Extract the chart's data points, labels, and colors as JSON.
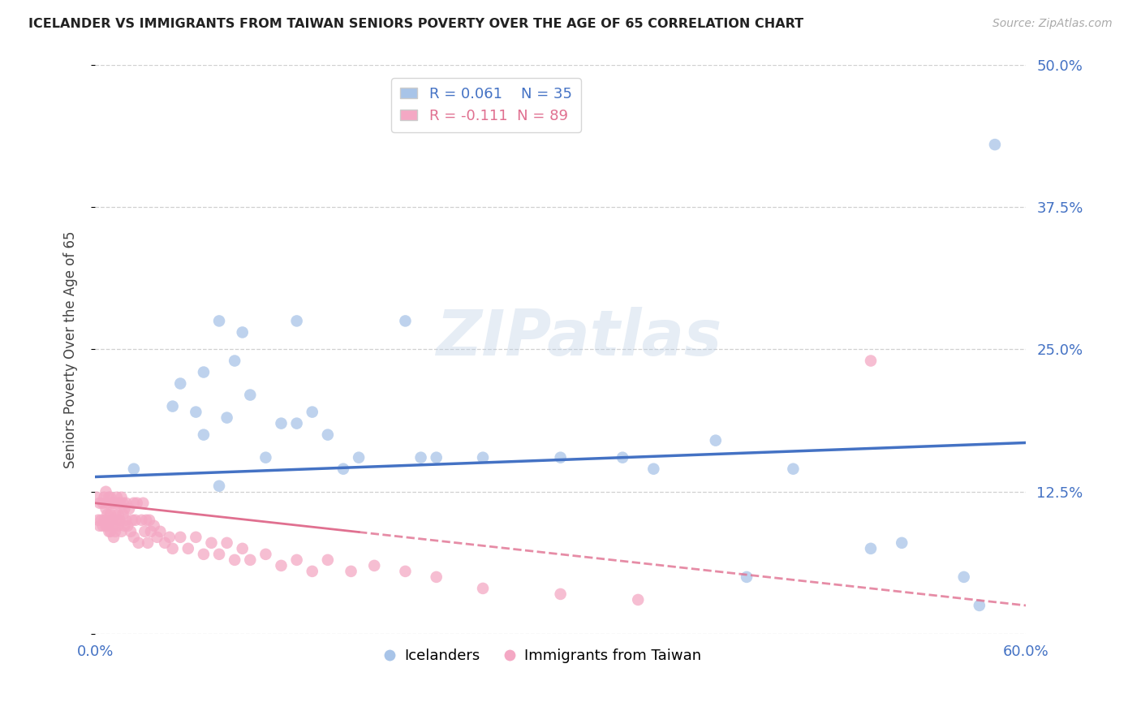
{
  "title": "ICELANDER VS IMMIGRANTS FROM TAIWAN SENIORS POVERTY OVER THE AGE OF 65 CORRELATION CHART",
  "source": "Source: ZipAtlas.com",
  "ylabel": "Seniors Poverty Over the Age of 65",
  "xlim": [
    0.0,
    0.6
  ],
  "ylim": [
    0.0,
    0.5
  ],
  "xticks": [
    0.0,
    0.1,
    0.2,
    0.3,
    0.4,
    0.5,
    0.6
  ],
  "yticks": [
    0.0,
    0.125,
    0.25,
    0.375,
    0.5
  ],
  "ytick_labels": [
    "",
    "12.5%",
    "25.0%",
    "37.5%",
    "50.0%"
  ],
  "xtick_labels": [
    "0.0%",
    "",
    "",
    "",
    "",
    "",
    "60.0%"
  ],
  "R_icelanders": 0.061,
  "N_icelanders": 35,
  "R_taiwan": -0.111,
  "N_taiwan": 89,
  "icelander_color": "#a8c4e8",
  "taiwan_color": "#f4a8c4",
  "trendline_icelander_color": "#4472c4",
  "trendline_taiwan_color": "#e07090",
  "watermark": "ZIPatlas",
  "trendline_ice_x0": 0.0,
  "trendline_ice_y0": 0.138,
  "trendline_ice_x1": 0.6,
  "trendline_ice_y1": 0.168,
  "trendline_tw_x0": 0.0,
  "trendline_tw_y0": 0.115,
  "trendline_tw_x1": 0.6,
  "trendline_tw_y1": 0.025,
  "icelanders_x": [
    0.025,
    0.05,
    0.055,
    0.065,
    0.07,
    0.07,
    0.08,
    0.085,
    0.09,
    0.095,
    0.1,
    0.11,
    0.12,
    0.13,
    0.14,
    0.15,
    0.16,
    0.17,
    0.2,
    0.21,
    0.22,
    0.25,
    0.3,
    0.34,
    0.36,
    0.4,
    0.42,
    0.45,
    0.5,
    0.52,
    0.56,
    0.57,
    0.58,
    0.08,
    0.13
  ],
  "icelanders_y": [
    0.145,
    0.2,
    0.22,
    0.195,
    0.23,
    0.175,
    0.13,
    0.19,
    0.24,
    0.265,
    0.21,
    0.155,
    0.185,
    0.185,
    0.195,
    0.175,
    0.145,
    0.155,
    0.275,
    0.155,
    0.155,
    0.155,
    0.155,
    0.155,
    0.145,
    0.17,
    0.05,
    0.145,
    0.075,
    0.08,
    0.05,
    0.025,
    0.43,
    0.275,
    0.275
  ],
  "taiwan_x": [
    0.001,
    0.002,
    0.003,
    0.003,
    0.004,
    0.005,
    0.005,
    0.006,
    0.006,
    0.007,
    0.007,
    0.007,
    0.008,
    0.008,
    0.008,
    0.009,
    0.009,
    0.009,
    0.01,
    0.01,
    0.01,
    0.011,
    0.011,
    0.012,
    0.012,
    0.012,
    0.013,
    0.013,
    0.013,
    0.014,
    0.014,
    0.015,
    0.015,
    0.015,
    0.016,
    0.016,
    0.017,
    0.017,
    0.018,
    0.018,
    0.019,
    0.019,
    0.02,
    0.02,
    0.021,
    0.022,
    0.023,
    0.024,
    0.025,
    0.025,
    0.026,
    0.027,
    0.028,
    0.03,
    0.031,
    0.032,
    0.033,
    0.034,
    0.035,
    0.036,
    0.038,
    0.04,
    0.042,
    0.045,
    0.048,
    0.05,
    0.055,
    0.06,
    0.065,
    0.07,
    0.075,
    0.08,
    0.085,
    0.09,
    0.095,
    0.1,
    0.11,
    0.12,
    0.13,
    0.14,
    0.15,
    0.165,
    0.18,
    0.2,
    0.22,
    0.25,
    0.3,
    0.35,
    0.5
  ],
  "taiwan_y": [
    0.12,
    0.1,
    0.095,
    0.115,
    0.1,
    0.115,
    0.095,
    0.12,
    0.1,
    0.095,
    0.11,
    0.125,
    0.105,
    0.095,
    0.115,
    0.1,
    0.12,
    0.09,
    0.105,
    0.12,
    0.09,
    0.1,
    0.115,
    0.095,
    0.115,
    0.085,
    0.105,
    0.115,
    0.09,
    0.12,
    0.1,
    0.115,
    0.095,
    0.105,
    0.1,
    0.115,
    0.09,
    0.12,
    0.105,
    0.115,
    0.095,
    0.11,
    0.1,
    0.115,
    0.095,
    0.11,
    0.09,
    0.1,
    0.115,
    0.085,
    0.1,
    0.115,
    0.08,
    0.1,
    0.115,
    0.09,
    0.1,
    0.08,
    0.1,
    0.09,
    0.095,
    0.085,
    0.09,
    0.08,
    0.085,
    0.075,
    0.085,
    0.075,
    0.085,
    0.07,
    0.08,
    0.07,
    0.08,
    0.065,
    0.075,
    0.065,
    0.07,
    0.06,
    0.065,
    0.055,
    0.065,
    0.055,
    0.06,
    0.055,
    0.05,
    0.04,
    0.035,
    0.03,
    0.24
  ]
}
